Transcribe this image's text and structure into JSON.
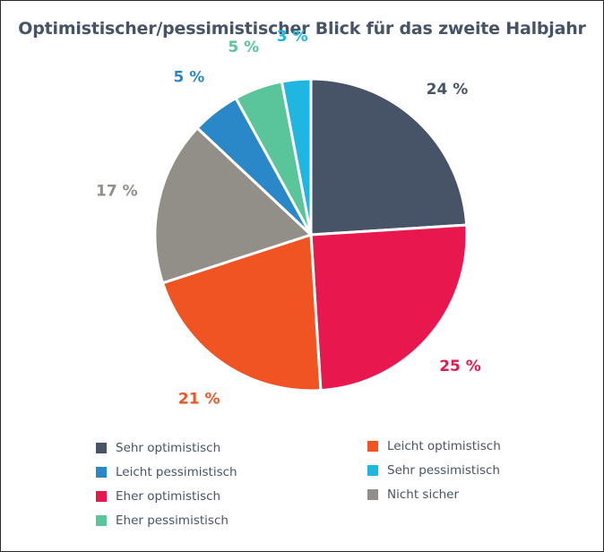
{
  "chart_data": {
    "type": "pie",
    "title": "Optimistischer/pessimistischer Blick für das zweite Halbjahr",
    "slices": [
      {
        "label": "Sehr optimistisch",
        "value": 24,
        "display": "24 %",
        "color": "#475467"
      },
      {
        "label": "Eher optimistisch",
        "value": 25,
        "display": "25 %",
        "color": "#e8184f"
      },
      {
        "label": "Leicht optimistisch",
        "value": 21,
        "display": "21 %",
        "color": "#f15423"
      },
      {
        "label": "Nicht sicher",
        "value": 17,
        "display": "17 %",
        "color": "#918f88"
      },
      {
        "label": "Leicht pessimistisch",
        "value": 5,
        "display": "5 %",
        "color": "#2b88c8"
      },
      {
        "label": "Eher pessimistisch",
        "value": 5,
        "display": "5 %",
        "color": "#5ac49a"
      },
      {
        "label": "Sehr pessimistisch",
        "value": 3,
        "display": "3 %",
        "color": "#1fb6e2"
      }
    ],
    "legend": {
      "placement": "bottom",
      "columns": [
        [
          "Sehr optimistisch",
          "Leicht pessimistisch",
          "Eher optimistisch",
          "Eher pessimistisch"
        ],
        [
          "Leicht optimistisch",
          "Sehr pessimistisch",
          "Nicht sicher"
        ]
      ]
    }
  }
}
